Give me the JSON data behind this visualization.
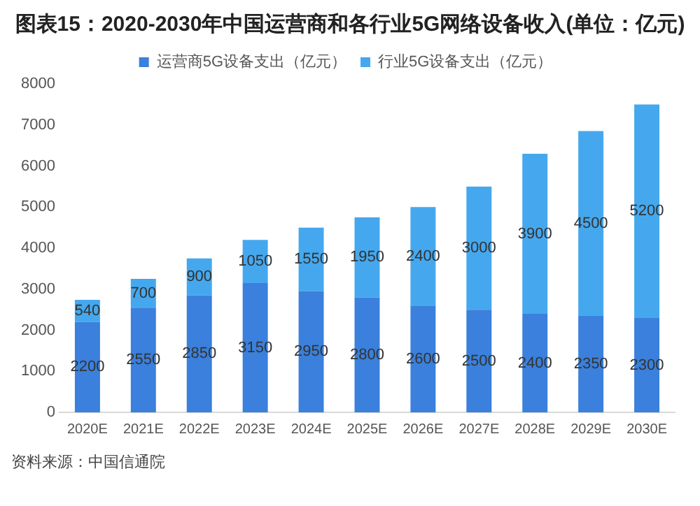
{
  "chart_data": {
    "type": "bar",
    "title": "图表15：2020-2030年中国运营商和各行业5G网络设备收入(单位：亿元)",
    "categories": [
      "2020E",
      "2021E",
      "2022E",
      "2023E",
      "2024E",
      "2025E",
      "2026E",
      "2027E",
      "2028E",
      "2029E",
      "2030E"
    ],
    "series": [
      {
        "name": "运营商5G设备支出（亿元）",
        "color": "#3a80dc",
        "values": [
          2200,
          2550,
          2850,
          3150,
          2950,
          2800,
          2600,
          2500,
          2400,
          2350,
          2300
        ]
      },
      {
        "name": "行业5G设备支出（亿元）",
        "color": "#45a8ee",
        "values": [
          540,
          700,
          900,
          1050,
          1550,
          1950,
          2400,
          3000,
          3900,
          4500,
          5200
        ]
      }
    ],
    "stacked": true,
    "ylim": [
      0,
      8000
    ],
    "yticks": [
      0,
      1000,
      2000,
      3000,
      4000,
      5000,
      6000,
      7000,
      8000
    ],
    "grid": false,
    "legend": "top",
    "data_labels": true,
    "annotations": [
      "资料来源：中国信通院"
    ]
  }
}
